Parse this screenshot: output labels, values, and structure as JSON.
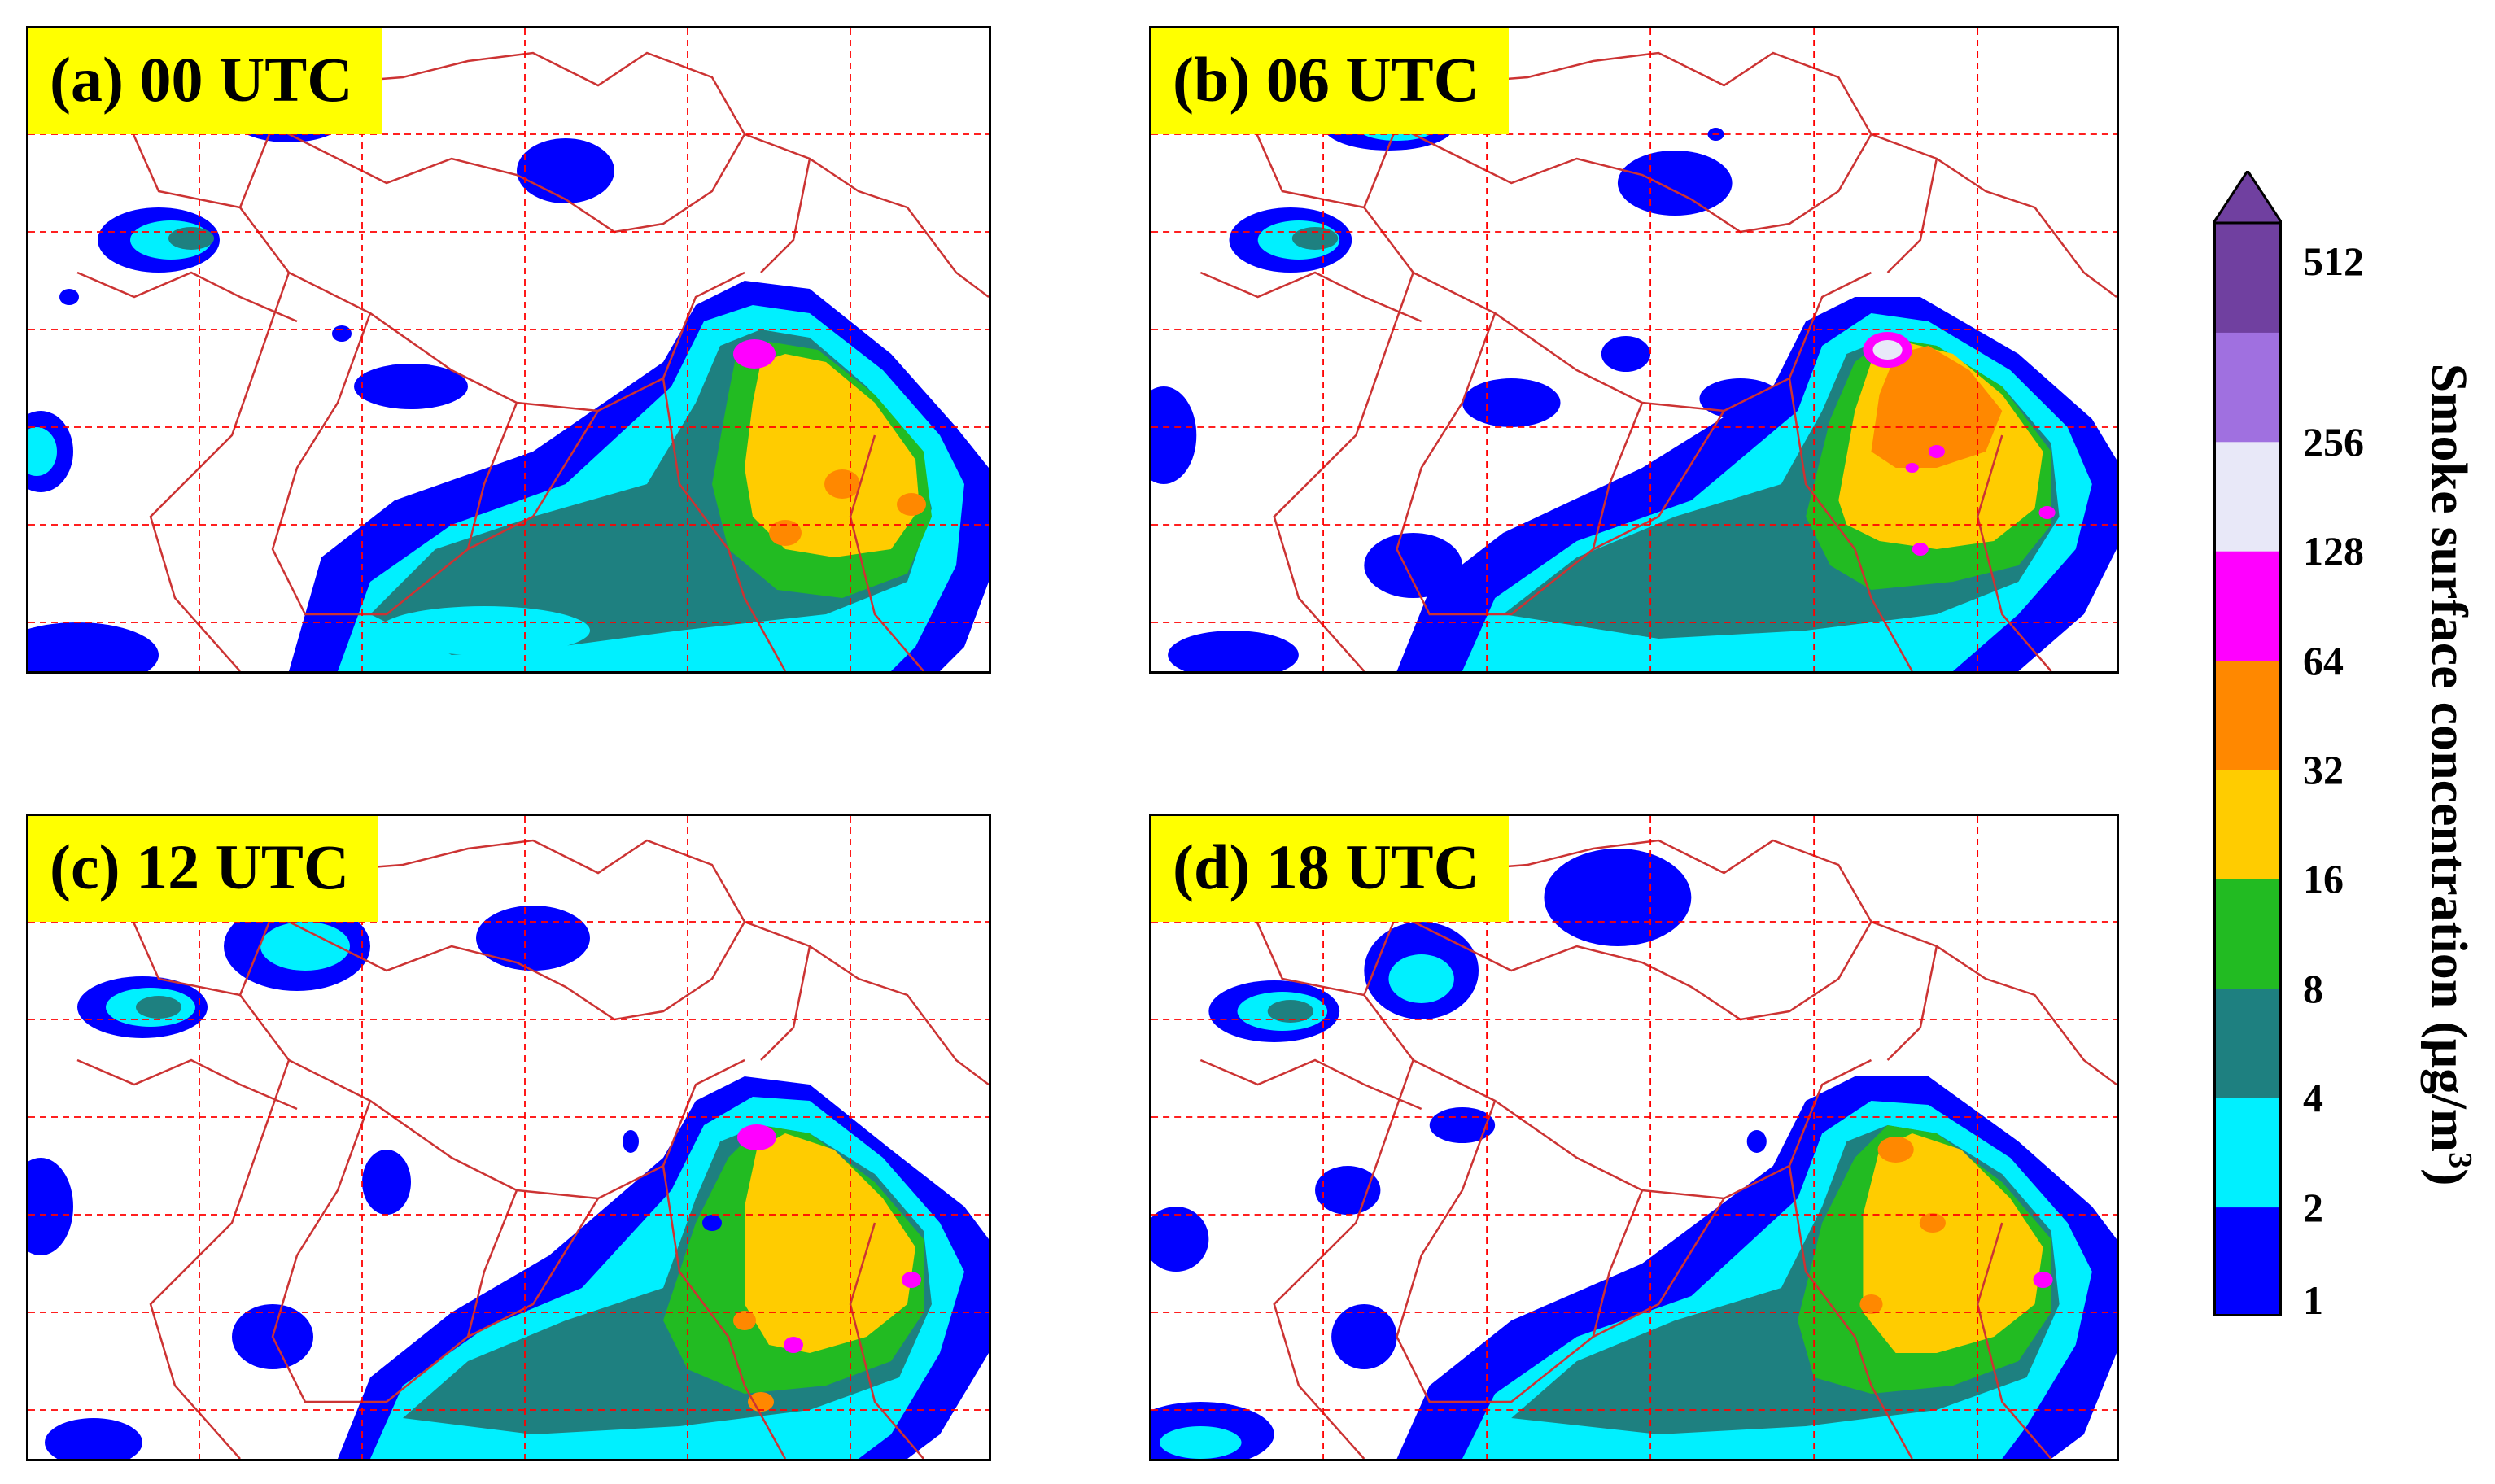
{
  "panels": [
    {
      "id": "a",
      "label": "(a) 00 UTC"
    },
    {
      "id": "b",
      "label": "(b) 06 UTC"
    },
    {
      "id": "c",
      "label": "(c) 12 UTC"
    },
    {
      "id": "d",
      "label": "(d) 18 UTC"
    }
  ],
  "colorbar": {
    "title_main": "Smoke surface concentration (μg/m",
    "title_exp": "3",
    "title_close": ")",
    "ticks": [
      "1",
      "2",
      "4",
      "8",
      "16",
      "32",
      "64",
      "128",
      "256",
      "512"
    ],
    "colors": [
      "#0000ff",
      "#00f0ff",
      "#1e8080",
      "#22bb22",
      "#ffcc00",
      "#ff8800",
      "#ff00ff",
      "#e8e8f8",
      "#a070e0",
      "#7040a0"
    ],
    "extend": "max"
  },
  "map_colors": {
    "borders": "#cc3333",
    "grid": "#ff0000",
    "background": "#ffffff"
  }
}
